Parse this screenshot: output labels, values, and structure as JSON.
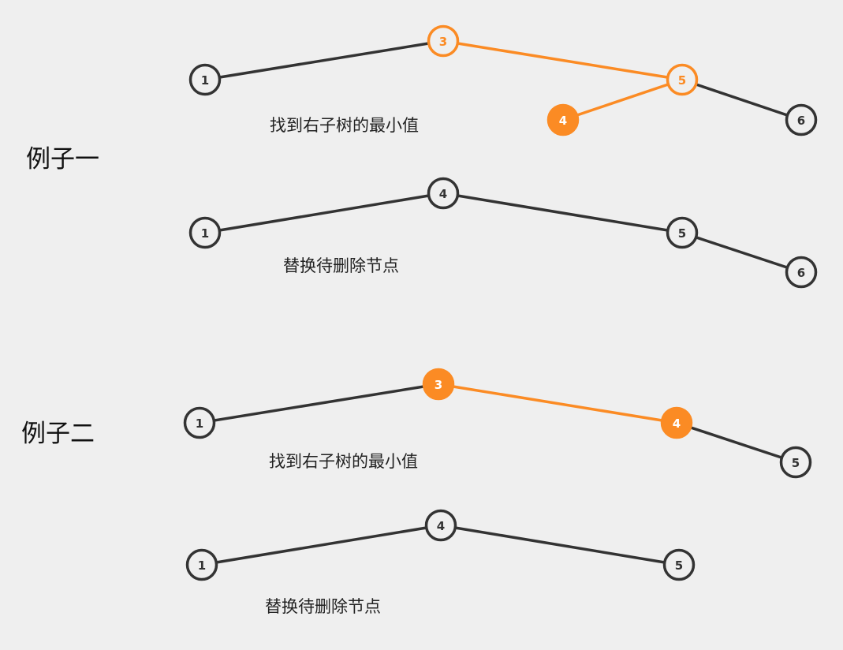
{
  "colors": {
    "background": "#efefef",
    "dark": "#333333",
    "highlight": "#fb8b24",
    "node_fill": "#efefef"
  },
  "examples": [
    {
      "title": "例子一",
      "steps": [
        {
          "caption": "找到右子树的最小值",
          "nodes": [
            {
              "id": "a1",
              "label": "1",
              "style": "dark"
            },
            {
              "id": "a3",
              "label": "3",
              "style": "outline"
            },
            {
              "id": "a5",
              "label": "5",
              "style": "outline"
            },
            {
              "id": "a4",
              "label": "4",
              "style": "filled"
            },
            {
              "id": "a6",
              "label": "6",
              "style": "dark"
            }
          ],
          "edges": [
            {
              "from": "a1",
              "to": "a3",
              "style": "dark"
            },
            {
              "from": "a3",
              "to": "a5",
              "style": "highlight"
            },
            {
              "from": "a5",
              "to": "a4",
              "style": "highlight"
            },
            {
              "from": "a5",
              "to": "a6",
              "style": "dark"
            }
          ]
        },
        {
          "caption": "替换待删除节点",
          "nodes": [
            {
              "id": "b1",
              "label": "1",
              "style": "dark"
            },
            {
              "id": "b4",
              "label": "4",
              "style": "dark"
            },
            {
              "id": "b5",
              "label": "5",
              "style": "dark"
            },
            {
              "id": "b6",
              "label": "6",
              "style": "dark"
            }
          ],
          "edges": [
            {
              "from": "b1",
              "to": "b4",
              "style": "dark"
            },
            {
              "from": "b4",
              "to": "b5",
              "style": "dark"
            },
            {
              "from": "b5",
              "to": "b6",
              "style": "dark"
            }
          ]
        }
      ]
    },
    {
      "title": "例子二",
      "steps": [
        {
          "caption": "找到右子树的最小值",
          "nodes": [
            {
              "id": "c1",
              "label": "1",
              "style": "dark"
            },
            {
              "id": "c3",
              "label": "3",
              "style": "filled"
            },
            {
              "id": "c4",
              "label": "4",
              "style": "filled"
            },
            {
              "id": "c5",
              "label": "5",
              "style": "dark"
            }
          ],
          "edges": [
            {
              "from": "c1",
              "to": "c3",
              "style": "dark"
            },
            {
              "from": "c3",
              "to": "c4",
              "style": "highlight"
            },
            {
              "from": "c4",
              "to": "c5",
              "style": "dark"
            }
          ]
        },
        {
          "caption": "替换待删除节点",
          "nodes": [
            {
              "id": "d1",
              "label": "1",
              "style": "dark"
            },
            {
              "id": "d4",
              "label": "4",
              "style": "dark"
            },
            {
              "id": "d5",
              "label": "5",
              "style": "dark"
            }
          ],
          "edges": [
            {
              "from": "d1",
              "to": "d4",
              "style": "dark"
            },
            {
              "from": "d4",
              "to": "d5",
              "style": "dark"
            }
          ]
        }
      ]
    }
  ]
}
